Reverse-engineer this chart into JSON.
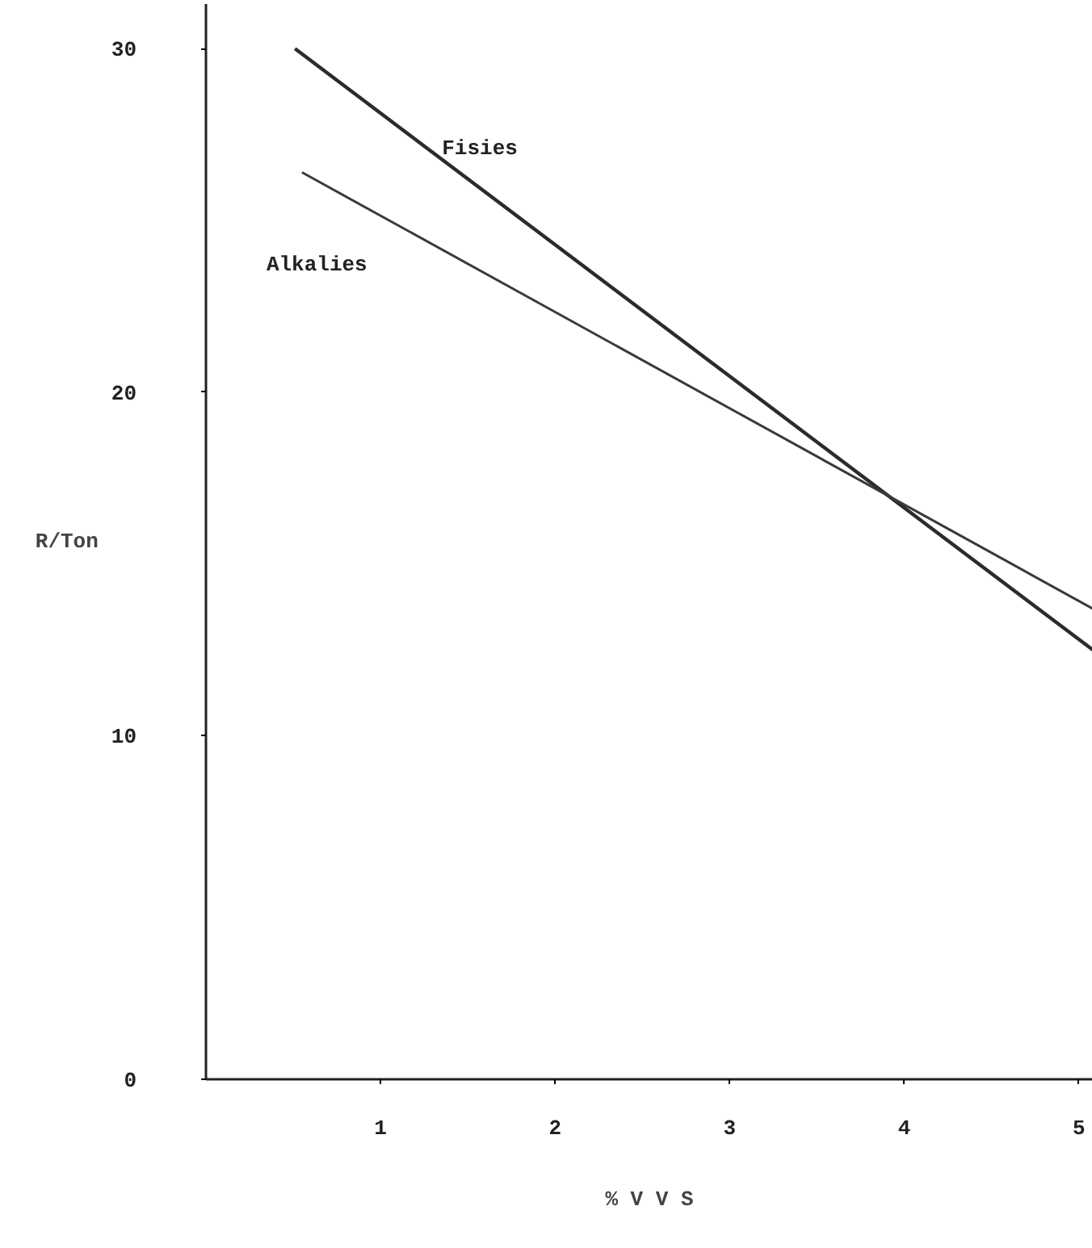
{
  "chart_data": {
    "type": "line",
    "xlabel": "% V V S",
    "ylabel": "R/Ton",
    "series": [
      {
        "name": "Fisies",
        "color": "#2b2b2b",
        "x": [
          0.51,
          5.08
        ],
        "values": [
          30.0,
          12.5
        ]
      },
      {
        "name": "Alkalies",
        "color": "#3a3a3a",
        "x": [
          0.55,
          5.08
        ],
        "values": [
          26.4,
          13.7
        ]
      }
    ],
    "xlim": [
      0,
      5.08
    ],
    "ylim": [
      0,
      31.3
    ],
    "xticks": [
      1,
      2,
      3,
      4,
      5
    ],
    "yticks": [
      0,
      10,
      20,
      30
    ],
    "grid": false,
    "legend": false,
    "marker": "none",
    "line_style": "solid"
  }
}
